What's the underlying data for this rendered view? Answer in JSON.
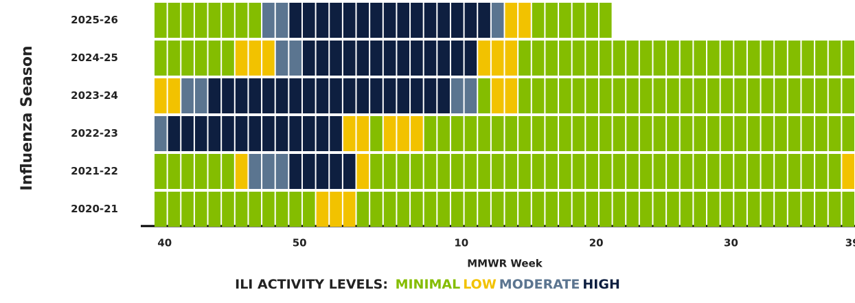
{
  "chart_data": {
    "type": "heatmap",
    "y_label": "Influenza Season",
    "x_label": "MMWR Week",
    "categories": [
      "40",
      null,
      null,
      null,
      null,
      null,
      null,
      null,
      null,
      null,
      "50",
      null,
      null,
      null,
      null,
      null,
      null,
      null,
      null,
      null,
      null,
      null,
      "10",
      null,
      null,
      null,
      null,
      null,
      null,
      null,
      null,
      null,
      "20",
      null,
      null,
      null,
      null,
      null,
      null,
      null,
      null,
      null,
      "30",
      null,
      null,
      null,
      null,
      null,
      null,
      null,
      null,
      "39"
    ],
    "rows": [
      {
        "name": "2025-26",
        "values": [
          1,
          1,
          1,
          1,
          1,
          1,
          1,
          1,
          3,
          3,
          4,
          4,
          4,
          4,
          4,
          4,
          4,
          4,
          4,
          4,
          4,
          4,
          4,
          4,
          4,
          3,
          2,
          2,
          1,
          1,
          1,
          1,
          1,
          1,
          null,
          null,
          null,
          null,
          null,
          null,
          null,
          null,
          null,
          null,
          null,
          null,
          null,
          null,
          null,
          null,
          null,
          null
        ]
      },
      {
        "name": "2024-25",
        "values": [
          1,
          1,
          1,
          1,
          1,
          1,
          2,
          2,
          2,
          3,
          3,
          4,
          4,
          4,
          4,
          4,
          4,
          4,
          4,
          4,
          4,
          4,
          4,
          4,
          2,
          2,
          2,
          1,
          1,
          1,
          1,
          1,
          1,
          1,
          1,
          1,
          1,
          1,
          1,
          1,
          1,
          1,
          1,
          1,
          1,
          1,
          1,
          1,
          1,
          1,
          1,
          1
        ]
      },
      {
        "name": "2023-24",
        "values": [
          2,
          2,
          3,
          3,
          4,
          4,
          4,
          4,
          4,
          4,
          4,
          4,
          4,
          4,
          4,
          4,
          4,
          4,
          4,
          4,
          4,
          4,
          3,
          3,
          1,
          2,
          2,
          1,
          1,
          1,
          1,
          1,
          1,
          1,
          1,
          1,
          1,
          1,
          1,
          1,
          1,
          1,
          1,
          1,
          1,
          1,
          1,
          1,
          1,
          1,
          1,
          1
        ]
      },
      {
        "name": "2022-23",
        "values": [
          3,
          4,
          4,
          4,
          4,
          4,
          4,
          4,
          4,
          4,
          4,
          4,
          4,
          4,
          2,
          2,
          1,
          2,
          2,
          2,
          1,
          1,
          1,
          1,
          1,
          1,
          1,
          1,
          1,
          1,
          1,
          1,
          1,
          1,
          1,
          1,
          1,
          1,
          1,
          1,
          1,
          1,
          1,
          1,
          1,
          1,
          1,
          1,
          1,
          1,
          1,
          1
        ]
      },
      {
        "name": "2021-22",
        "values": [
          1,
          1,
          1,
          1,
          1,
          1,
          2,
          3,
          3,
          3,
          4,
          4,
          4,
          4,
          4,
          2,
          1,
          1,
          1,
          1,
          1,
          1,
          1,
          1,
          1,
          1,
          1,
          1,
          1,
          1,
          1,
          1,
          1,
          1,
          1,
          1,
          1,
          1,
          1,
          1,
          1,
          1,
          1,
          1,
          1,
          1,
          1,
          1,
          1,
          1,
          1,
          2
        ]
      },
      {
        "name": "2020-21",
        "values": [
          1,
          1,
          1,
          1,
          1,
          1,
          1,
          1,
          1,
          1,
          1,
          1,
          2,
          2,
          2,
          1,
          1,
          1,
          1,
          1,
          1,
          1,
          1,
          1,
          1,
          1,
          1,
          1,
          1,
          1,
          1,
          1,
          1,
          1,
          1,
          1,
          1,
          1,
          1,
          1,
          1,
          1,
          1,
          1,
          1,
          1,
          1,
          1,
          1,
          1,
          1,
          1
        ]
      }
    ],
    "legend_title": "ILI ACTIVITY LEVELS:",
    "levels": [
      {
        "name": "MINIMAL",
        "color": "#84bd00"
      },
      {
        "name": "LOW",
        "color": "#f2c200"
      },
      {
        "name": "MODERATE",
        "color": "#5b7590"
      },
      {
        "name": "HIGH",
        "color": "#0e1f40"
      }
    ]
  }
}
